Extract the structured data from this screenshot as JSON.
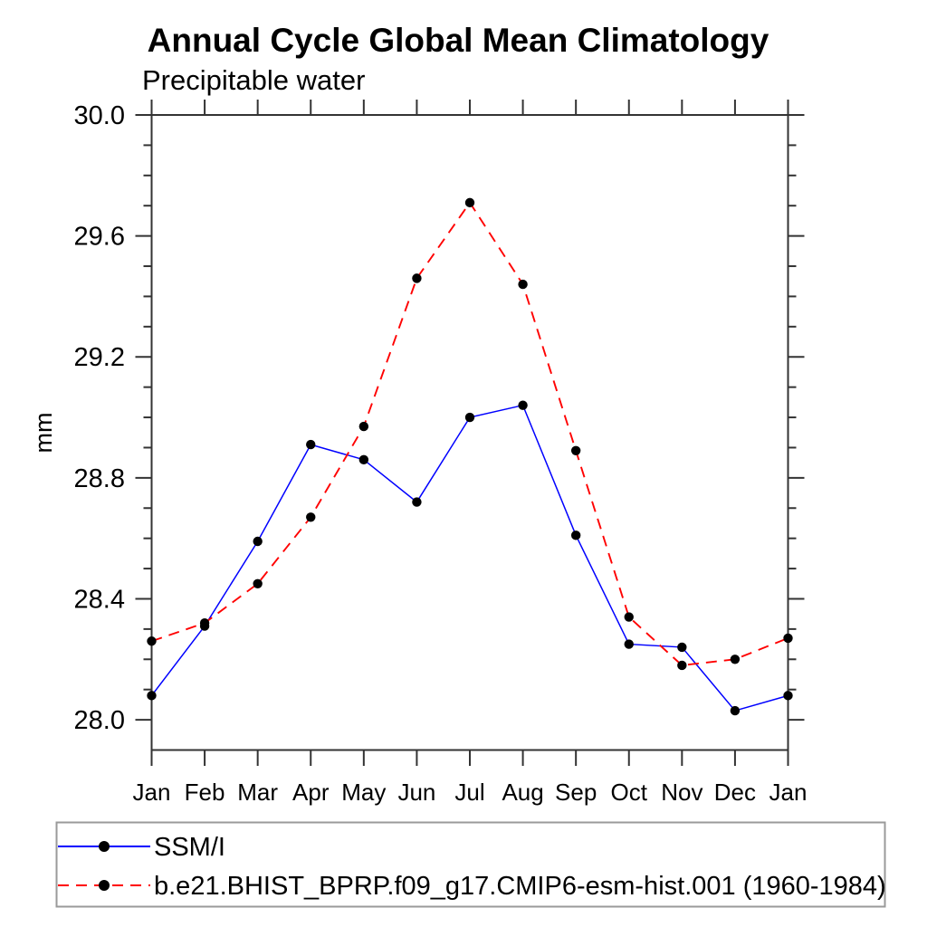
{
  "figure": {
    "title": "Annual Cycle Global Mean Climatology",
    "subtitle": "Precipitable water",
    "ylabel": "mm"
  },
  "colors": {
    "background": "#ffffff",
    "axis": "#333333",
    "text": "#000000",
    "legend_border": "#9a9a9a",
    "marker": "#000000",
    "obs_line": "#0000ff",
    "model_line": "#ff0000"
  },
  "chart_data": {
    "type": "line",
    "title": "Annual Cycle Global Mean Climatology",
    "subtitle": "Precipitable water",
    "xlabel": "",
    "ylabel": "mm",
    "categories": [
      "Jan",
      "Feb",
      "Mar",
      "Apr",
      "May",
      "Jun",
      "Jul",
      "Aug",
      "Sep",
      "Oct",
      "Nov",
      "Dec",
      "Jan"
    ],
    "ylim": [
      27.9,
      30.0
    ],
    "yticks_major": [
      28.0,
      28.4,
      28.8,
      29.2,
      29.6,
      30.0
    ],
    "ytick_minor_step": 0.1,
    "grid": false,
    "legend_position": "bottom-box",
    "series": [
      {
        "name": "SSM/I",
        "color": "#0000ff",
        "line_style": "solid",
        "marker": "filled-circle",
        "marker_color": "#000000",
        "values": [
          28.08,
          28.31,
          28.59,
          28.91,
          28.86,
          28.72,
          29.0,
          29.04,
          28.61,
          28.25,
          28.24,
          28.03,
          28.08
        ]
      },
      {
        "name": "b.e21.BHIST_BPRP.f09_g17.CMIP6-esm-hist.001 (1960-1984)",
        "color": "#ff0000",
        "line_style": "dashed",
        "marker": "filled-circle",
        "marker_color": "#000000",
        "values": [
          28.26,
          28.32,
          28.45,
          28.67,
          28.97,
          29.46,
          29.71,
          29.44,
          28.89,
          28.34,
          28.18,
          28.2,
          28.27
        ]
      }
    ]
  }
}
